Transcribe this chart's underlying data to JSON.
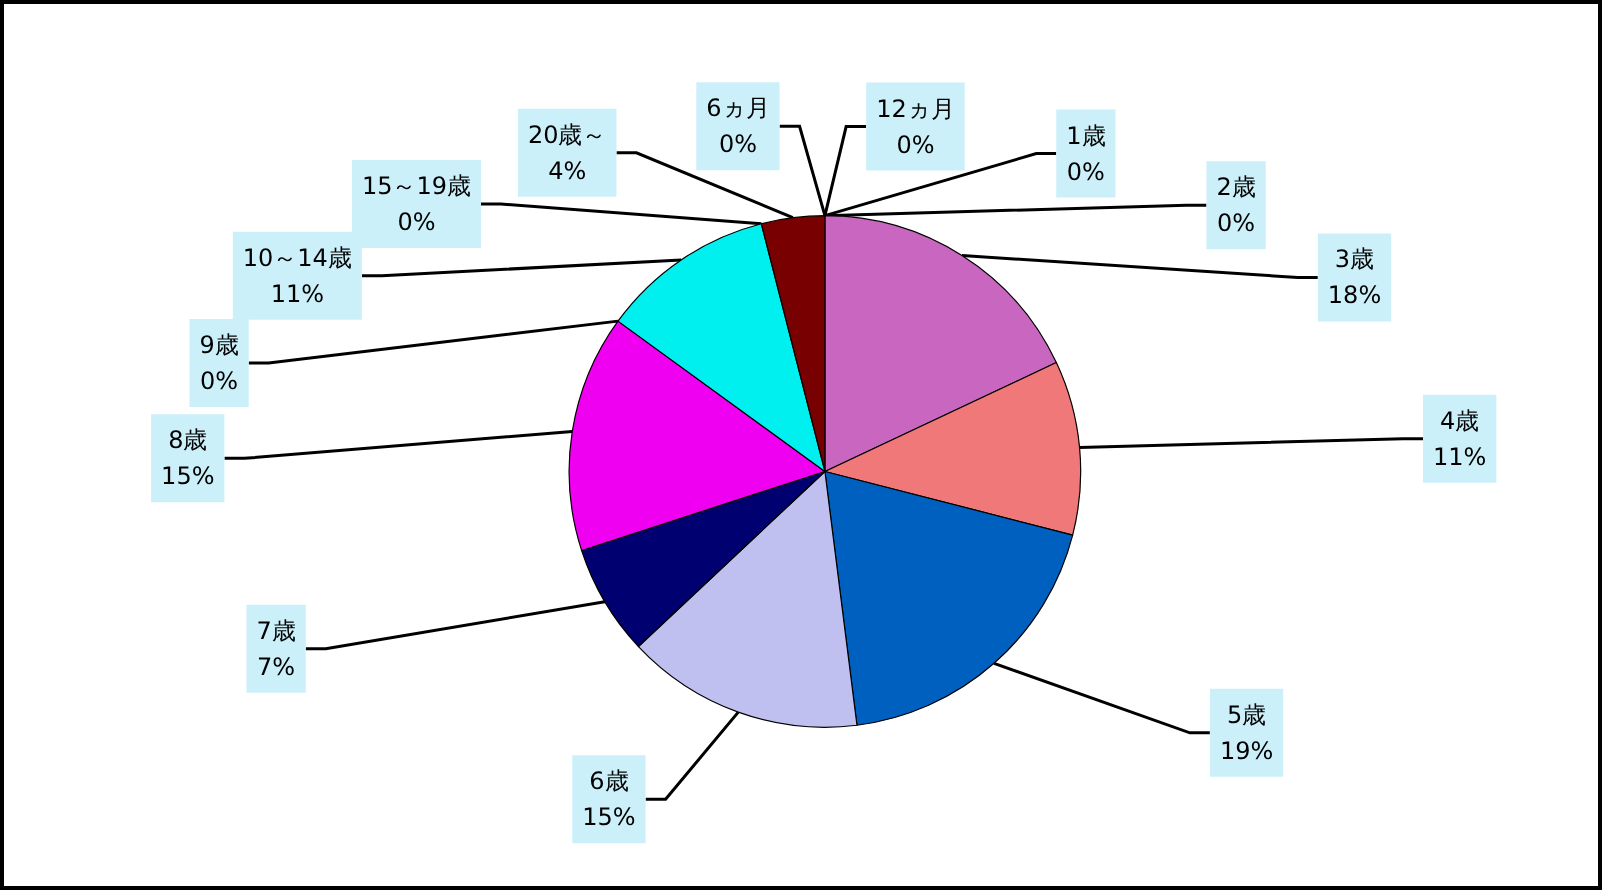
{
  "chart_data": {
    "type": "pie",
    "categories": [
      "6ヵ月",
      "12ヵ月",
      "1歳",
      "2歳",
      "3歳",
      "4歳",
      "5歳",
      "6歳",
      "7歳",
      "8歳",
      "9歳",
      "10～14歳",
      "15～19歳",
      "20歳～"
    ],
    "values": [
      0,
      0,
      0,
      0,
      18,
      11,
      19,
      15,
      7,
      15,
      0,
      11,
      0,
      4
    ],
    "value_labels": [
      "0%",
      "0%",
      "0%",
      "0%",
      "18%",
      "11%",
      "19%",
      "15%",
      "7%",
      "15%",
      "0%",
      "11%",
      "0%",
      "4%"
    ],
    "colors": [
      "#9999ff",
      "#993366",
      "#ffffcc",
      "#ccffff",
      "#c866c0",
      "#f07878",
      "#0060c0",
      "#c0c0f0",
      "#000070",
      "#f000f0",
      "#808000",
      "#00f0f0",
      "#800080",
      "#780000"
    ]
  }
}
